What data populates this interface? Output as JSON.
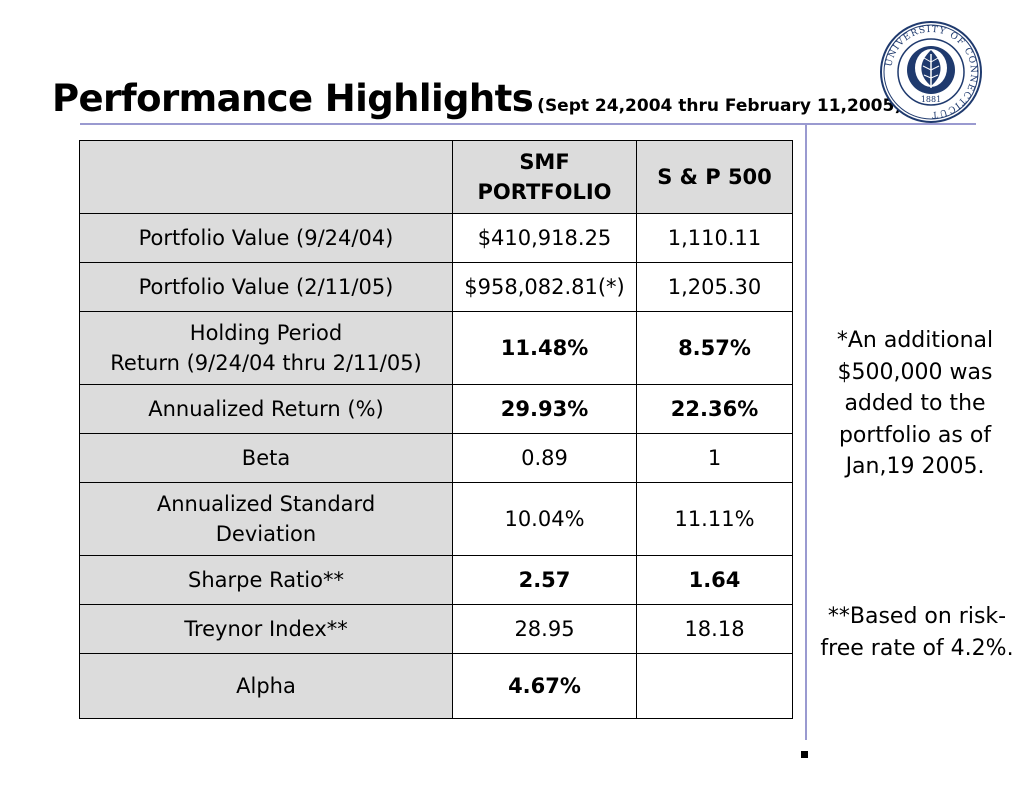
{
  "slide": {
    "title": "Performance Highlights",
    "subtitle": "(Sept 24,2004 thru February 11,2005)"
  },
  "table": {
    "header": {
      "col1_line1": "SMF",
      "col1_line2": "PORTFOLIO",
      "col2": "S & P 500"
    },
    "rows": [
      {
        "label": "Portfolio Value (9/24/04)",
        "smf": "$410,918.25",
        "sp": "1,110.11"
      },
      {
        "label": "Portfolio Value (2/11/05)",
        "smf": "$958,082.81(*)",
        "sp": "1,205.30"
      },
      {
        "label_line1": "Holding Period",
        "label_line2": "Return (9/24/04 thru 2/11/05)",
        "smf": "11.48%",
        "sp": "8.57%"
      },
      {
        "label": "Annualized Return (%)",
        "smf": "29.93%",
        "sp": "22.36%"
      },
      {
        "label": "Beta",
        "smf": "0.89",
        "sp": "1"
      },
      {
        "label_line1": "Annualized Standard",
        "label_line2": "Deviation",
        "smf": "10.04%",
        "sp": "11.11%"
      },
      {
        "label": "Sharpe Ratio**",
        "smf": "2.57",
        "sp": "1.64"
      },
      {
        "label": "Treynor Index**",
        "smf": "28.95",
        "sp": "18.18"
      },
      {
        "label": "Alpha",
        "smf": "4.67%",
        "sp": ""
      }
    ]
  },
  "notes": {
    "additional": {
      "line1": "*An additional",
      "line2": "$500,000 was",
      "line3": "added to the",
      "line4": "portfolio as of",
      "line5": "Jan,19 2005."
    },
    "risk_free": {
      "line1": "**Based on risk-",
      "line2": "free rate of 4.2%."
    }
  },
  "seal": {
    "text": "UNIVERSITY OF CONNECTICUT",
    "year": "1881",
    "ring_color": "#1f3a6e",
    "inner_color": "#1f3a6e"
  },
  "colors": {
    "rule": "#9a9ad0",
    "label_shade": "#dcdcdc"
  }
}
